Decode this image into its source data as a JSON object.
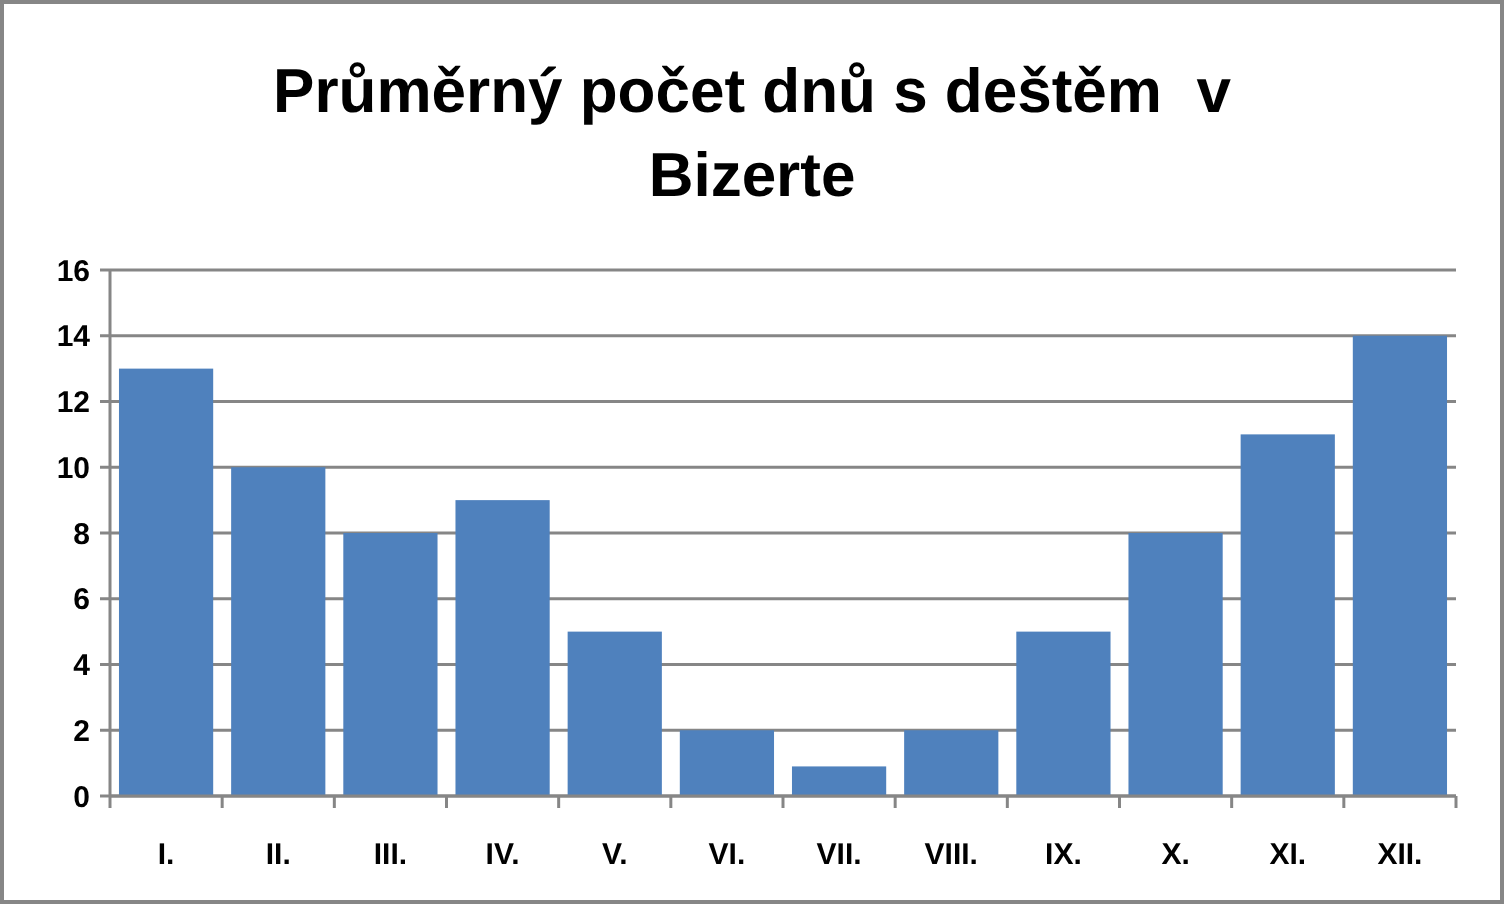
{
  "chart_data": {
    "type": "bar",
    "title": "Průměrný počet dnů s deštěm  v Bizerte",
    "categories": [
      "I.",
      "II.",
      "III.",
      "IV.",
      "V.",
      "VI.",
      "VII.",
      "VIII.",
      "IX.",
      "X.",
      "XI.",
      "XII."
    ],
    "values": [
      13,
      10,
      8,
      9,
      5,
      2,
      0.9,
      2,
      5,
      8,
      11,
      14
    ],
    "color": "#4f81bd",
    "ylim": [
      0,
      16
    ],
    "yticks": [
      0,
      2,
      4,
      6,
      8,
      10,
      12,
      14,
      16
    ],
    "grid": "y"
  }
}
